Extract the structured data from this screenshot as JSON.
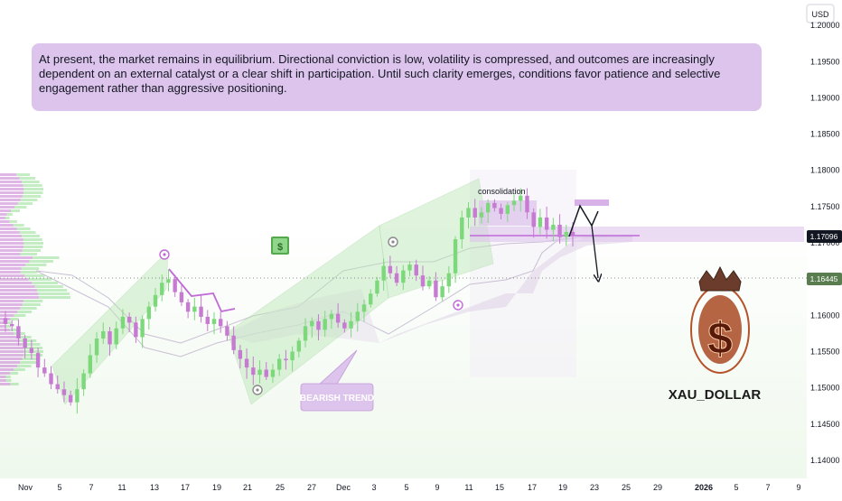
{
  "colors": {
    "background_top": "#ffffff",
    "background_bottom": "#eef8ec",
    "bull": "#7dd87c",
    "bear": "#c77ad1",
    "channel_fill": "#b9e6b4",
    "annotation_fill": "#ddc4ec",
    "price_label_bg": "#131722",
    "current_level_bg": "#5a7d4f"
  },
  "axis": {
    "currency": "USD",
    "y_ticks": [
      "1.20000",
      "1.19500",
      "1.19000",
      "1.18500",
      "1.18000",
      "1.17500",
      "1.17000",
      "1.16500",
      "1.16000",
      "1.15500",
      "1.15000",
      "1.14500",
      "1.14000"
    ],
    "x_ticks": [
      "Nov",
      "5",
      "7",
      "11",
      "13",
      "17",
      "19",
      "21",
      "25",
      "27",
      "Dec",
      "3",
      "5",
      "9",
      "11",
      "15",
      "17",
      "19",
      "23",
      "25",
      "29",
      "2026",
      "5",
      "7",
      "9"
    ]
  },
  "price_labels": {
    "last": "1.17096",
    "level": "1.16445"
  },
  "annotation": {
    "text": "At present, the market remains in equilibrium. Directional conviction is low, volatility is compressed, and outcomes are increasingly dependent on an external catalyst or a clear shift in participation. Until such clarity emerges, conditions favor patience and selective engagement rather than aggressive positioning."
  },
  "labels": {
    "consolidation": "consolidation",
    "bearish_trend": "BEARISH TREND"
  },
  "logo": {
    "text": "XAU_DOLLAR",
    "icon": "crown-dollar-icon"
  },
  "icons": {
    "money": "money-icon"
  },
  "chart_data": {
    "type": "candlestick",
    "title": "",
    "ylabel": "USD",
    "ylim": [
      1.1375,
      1.2035
    ],
    "grid": false,
    "annotations": [
      "consolidation",
      "BEARISH TREND"
    ],
    "close": [
      1.1588,
      1.1585,
      1.1568,
      1.1555,
      1.1548,
      1.1528,
      1.152,
      1.1505,
      1.1498,
      1.149,
      1.148,
      1.1498,
      1.152,
      1.1545,
      1.1568,
      1.1578,
      1.156,
      1.1582,
      1.1598,
      1.159,
      1.157,
      1.1595,
      1.1612,
      1.1628,
      1.1645,
      1.165,
      1.1632,
      1.1618,
      1.1605,
      1.1612,
      1.1598,
      1.1588,
      1.1595,
      1.1585,
      1.1572,
      1.1552,
      1.154,
      1.1528,
      1.1518,
      1.1525,
      1.1515,
      1.1525,
      1.154,
      1.1538,
      1.155,
      1.1565,
      1.1585,
      1.1592,
      1.158,
      1.1595,
      1.1602,
      1.159,
      1.1582,
      1.1592,
      1.1605,
      1.1615,
      1.163,
      1.1648,
      1.1668,
      1.1658,
      1.1645,
      1.1662,
      1.167,
      1.1655,
      1.164,
      1.1648,
      1.1625,
      1.164,
      1.1658,
      1.1705,
      1.1735,
      1.1748,
      1.1735,
      1.1742,
      1.1755,
      1.1748,
      1.174,
      1.1752,
      1.1758,
      1.1765,
      1.1742,
      1.1722,
      1.1735,
      1.1718,
      1.1725,
      1.1708,
      1.1715,
      1.171
    ]
  }
}
